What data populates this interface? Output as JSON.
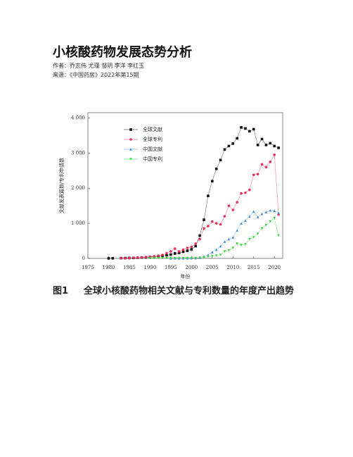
{
  "header": {
    "title": "小核酸药物发展态势分析",
    "authors": "作者：乔志伟 尤瑾 邹玥 李洋 李红玉",
    "source": "来源：《中国药房》2022年第15期"
  },
  "caption": {
    "number": "图1",
    "text": "全球小核酸药物相关文献与专利数量的年度产出趋势"
  },
  "chart_data": {
    "type": "line",
    "xlabel": "年份",
    "ylabel": "文献发表篇数/专利申请数",
    "x": [
      1980,
      1981,
      1982,
      1983,
      1984,
      1985,
      1986,
      1987,
      1988,
      1989,
      1990,
      1991,
      1992,
      1993,
      1994,
      1995,
      1996,
      1997,
      1998,
      1999,
      2000,
      2001,
      2002,
      2003,
      2004,
      2005,
      2006,
      2007,
      2008,
      2009,
      2010,
      2011,
      2012,
      2013,
      2014,
      2015,
      2016,
      2017,
      2018,
      2019,
      2020,
      2021
    ],
    "series": [
      {
        "name": "全球文献",
        "color": "#111111",
        "marker": "square",
        "values": [
          3,
          5,
          null,
          8,
          10,
          12,
          15,
          20,
          25,
          30,
          40,
          50,
          60,
          70,
          90,
          110,
          140,
          160,
          190,
          220,
          260,
          350,
          650,
          1100,
          1780,
          2200,
          2550,
          2800,
          3100,
          3200,
          3270,
          3420,
          3730,
          3700,
          3620,
          3680,
          3230,
          3400,
          3230,
          3280,
          3200,
          3150
        ]
      },
      {
        "name": "全球专利",
        "color": "#e8315a",
        "marker": "circle",
        "values": [
          null,
          null,
          null,
          5,
          5,
          10,
          20,
          25,
          30,
          40,
          50,
          60,
          80,
          100,
          150,
          200,
          280,
          200,
          250,
          300,
          330,
          420,
          550,
          850,
          920,
          1050,
          1000,
          970,
          1200,
          1500,
          1380,
          1600,
          1850,
          1870,
          1950,
          2380,
          2400,
          2680,
          2600,
          2750,
          2950,
          1250
        ]
      },
      {
        "name": "中国文献",
        "color": "#3a8de0",
        "marker": "triangle",
        "values": [
          null,
          null,
          null,
          null,
          null,
          null,
          null,
          null,
          null,
          null,
          null,
          null,
          null,
          null,
          null,
          2,
          3,
          4,
          5,
          6,
          8,
          10,
          20,
          60,
          100,
          180,
          250,
          350,
          480,
          550,
          600,
          800,
          1000,
          1080,
          1200,
          1340,
          1180,
          1270,
          1320,
          1370,
          1360,
          1300
        ]
      },
      {
        "name": "中国专利",
        "color": "#3ad33a",
        "marker": "triangle-down",
        "values": [
          null,
          null,
          null,
          null,
          null,
          null,
          null,
          null,
          null,
          null,
          5,
          5,
          5,
          6,
          6,
          8,
          8,
          10,
          10,
          10,
          10,
          10,
          20,
          30,
          50,
          60,
          80,
          100,
          200,
          230,
          300,
          420,
          380,
          400,
          550,
          600,
          700,
          850,
          950,
          1050,
          1150,
          650
        ]
      }
    ],
    "xlim": [
      1975,
      2022
    ],
    "xticks": [
      1975,
      1980,
      1985,
      1990,
      1995,
      2000,
      2005,
      2010,
      2015,
      2020
    ],
    "ylim": [
      0,
      4150
    ],
    "yticks": [
      0,
      {
        "value": 1000,
        "label": "1 000"
      },
      {
        "value": 2000,
        "label": "2 000"
      },
      {
        "value": 3000,
        "label": "3 000"
      },
      {
        "value": 4000,
        "label": "4 000"
      }
    ],
    "legend": "upper-left"
  }
}
